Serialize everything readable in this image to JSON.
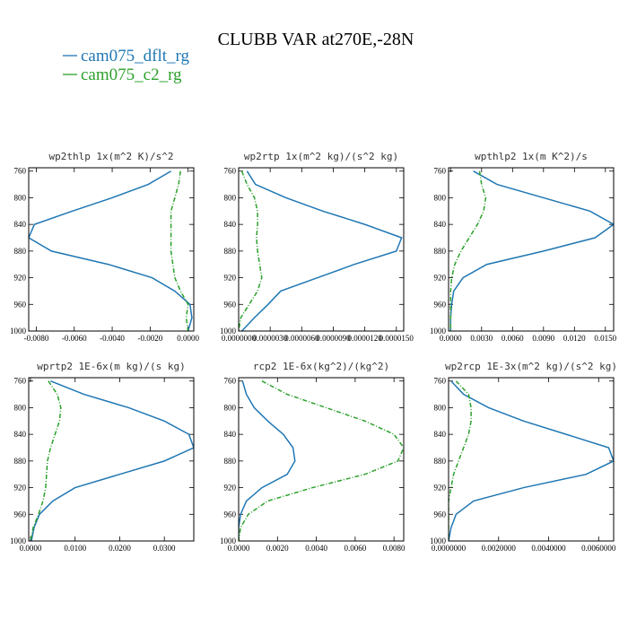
{
  "title": "CLUBB VAR at270E,-28N",
  "legend": [
    {
      "name": "cam075_dflt_rg",
      "color": "#1f77b4",
      "style": "solid"
    },
    {
      "name": "cam075_c2_rg",
      "color": "#2ca02c",
      "style": "dashed"
    }
  ],
  "chart_data": [
    {
      "type": "line",
      "title": "wp2thlp  1x(m^2 K)/s^2",
      "y": [
        760,
        780,
        800,
        820,
        840,
        860,
        880,
        900,
        920,
        940,
        960,
        980,
        1000
      ],
      "ylim": [
        1000,
        755
      ],
      "yticks": [
        760,
        800,
        840,
        880,
        920,
        960,
        1000
      ],
      "xlim": [
        -0.0084,
        0.0003
      ],
      "xticks": [
        {
          "value": -0.008,
          "label": "-0.0080"
        },
        {
          "value": -0.006,
          "label": "-0.0060"
        },
        {
          "value": -0.004,
          "label": "-0.0040"
        },
        {
          "value": -0.002,
          "label": "-0.0020"
        },
        {
          "value": 0,
          "label": "0.0000"
        }
      ],
      "series": [
        {
          "color": "#1f77b4",
          "style": "solid",
          "values": [
            -0.0009,
            -0.0021,
            -0.004,
            -0.0061,
            -0.0081,
            -0.0084,
            -0.0072,
            -0.0042,
            -0.0019,
            -0.0007,
            0.0001,
            0.0002,
            0.0
          ]
        },
        {
          "color": "#2ca02c",
          "style": "dashed",
          "values": [
            -0.0004,
            -0.0005,
            -0.0007,
            -0.0009,
            -0.0009,
            -0.0009,
            -0.0009,
            -0.0008,
            -0.0007,
            -0.0004,
            0.0,
            -0.0001,
            0.0
          ]
        }
      ]
    },
    {
      "type": "line",
      "title": "wp2rtp  1x(m^2 kg)/(s^2 kg)",
      "y": [
        760,
        780,
        800,
        820,
        840,
        860,
        880,
        900,
        920,
        940,
        960,
        980,
        1000
      ],
      "ylim": [
        1000,
        755
      ],
      "yticks": [
        760,
        800,
        840,
        880,
        920,
        960,
        1000
      ],
      "xlim": [
        0,
        1.57e-05
      ],
      "xticks": [
        {
          "value": 0,
          "label": "0.0000000"
        },
        {
          "value": 3e-06,
          "label": "0.0000030"
        },
        {
          "value": 6e-06,
          "label": "0.0000060"
        },
        {
          "value": 9e-06,
          "label": "0.0000090"
        },
        {
          "value": 1.2e-05,
          "label": "0.0000120"
        },
        {
          "value": 1.5e-05,
          "label": "0.0000150"
        }
      ],
      "series": [
        {
          "color": "#1f77b4",
          "style": "solid",
          "values": [
            8e-07,
            1.6e-06,
            4.5e-06,
            8e-06,
            1.2e-05,
            1.55e-05,
            1.5e-05,
            1.1e-05,
            7.5e-06,
            4e-06,
            2.8e-06,
            1.5e-06,
            3e-07
          ]
        },
        {
          "color": "#2ca02c",
          "style": "dashed",
          "values": [
            3e-07,
            8e-07,
            1.5e-06,
            1.8e-06,
            1.8e-06,
            1.7e-06,
            1.8e-06,
            2e-06,
            2.2e-06,
            1.8e-06,
            1e-06,
            2e-07,
            0
          ]
        }
      ]
    },
    {
      "type": "line",
      "title": "wpthlp2  1x(m K^2)/s",
      "y": [
        760,
        780,
        800,
        820,
        840,
        860,
        880,
        900,
        920,
        940,
        960,
        980,
        1000
      ],
      "ylim": [
        1000,
        755
      ],
      "yticks": [
        760,
        800,
        840,
        880,
        920,
        960,
        1000
      ],
      "xlim": [
        -0.0002,
        0.0158
      ],
      "xticks": [
        {
          "value": 0,
          "label": "0.0000"
        },
        {
          "value": 0.003,
          "label": "0.0030"
        },
        {
          "value": 0.006,
          "label": "0.0060"
        },
        {
          "value": 0.009,
          "label": "0.0090"
        },
        {
          "value": 0.012,
          "label": "0.0120"
        },
        {
          "value": 0.015,
          "label": "0.0150"
        }
      ],
      "series": [
        {
          "color": "#1f77b4",
          "style": "solid",
          "values": [
            0.0022,
            0.0045,
            0.009,
            0.0135,
            0.0158,
            0.014,
            0.009,
            0.0035,
            0.0012,
            0.0003,
            0.0001,
            0,
            0
          ]
        },
        {
          "color": "#2ca02c",
          "style": "dashed",
          "values": [
            0.0028,
            0.003,
            0.0034,
            0.0032,
            0.0026,
            0.0018,
            0.001,
            0.0004,
            0.0001,
            0,
            0,
            0,
            0
          ]
        }
      ]
    },
    {
      "type": "line",
      "title": "wprtp2  1E-6x(m kg)/(s kg)",
      "y": [
        760,
        780,
        800,
        820,
        840,
        860,
        880,
        900,
        920,
        940,
        960,
        980,
        1000
      ],
      "ylim": [
        1000,
        755
      ],
      "yticks": [
        760,
        800,
        840,
        880,
        920,
        960,
        1000
      ],
      "xlim": [
        -0.0004,
        0.0366
      ],
      "xticks": [
        {
          "value": 0,
          "label": "0.0000"
        },
        {
          "value": 0.01,
          "label": "0.0100"
        },
        {
          "value": 0.02,
          "label": "0.0200"
        },
        {
          "value": 0.03,
          "label": "0.0300"
        }
      ],
      "series": [
        {
          "color": "#1f77b4",
          "style": "solid",
          "values": [
            0.0045,
            0.012,
            0.022,
            0.03,
            0.0355,
            0.0366,
            0.03,
            0.02,
            0.01,
            0.005,
            0.002,
            0.0008,
            0.0002
          ]
        },
        {
          "color": "#2ca02c",
          "style": "dashed",
          "values": [
            0.004,
            0.006,
            0.0068,
            0.0065,
            0.0055,
            0.0045,
            0.0038,
            0.0036,
            0.0034,
            0.0028,
            0.0018,
            0.0006,
            0
          ]
        }
      ]
    },
    {
      "type": "line",
      "title": "rcp2  1E-6x(kg^2)/(kg^2)",
      "y": [
        760,
        780,
        800,
        820,
        840,
        860,
        880,
        900,
        920,
        940,
        960,
        980,
        1000
      ],
      "ylim": [
        1000,
        755
      ],
      "yticks": [
        760,
        800,
        840,
        880,
        920,
        960,
        1000
      ],
      "xlim": [
        0,
        0.0085
      ],
      "xticks": [
        {
          "value": 0,
          "label": "0.0000"
        },
        {
          "value": 0.002,
          "label": "0.0020"
        },
        {
          "value": 0.004,
          "label": "0.0040"
        },
        {
          "value": 0.006,
          "label": "0.0060"
        },
        {
          "value": 0.008,
          "label": "0.0080"
        }
      ],
      "series": [
        {
          "color": "#1f77b4",
          "style": "solid",
          "values": [
            0.0002,
            0.0004,
            0.0008,
            0.0015,
            0.0023,
            0.0028,
            0.0029,
            0.0025,
            0.0012,
            0.0004,
            0.0001,
            0,
            0
          ]
        },
        {
          "color": "#2ca02c",
          "style": "dashed",
          "values": [
            0.0012,
            0.0025,
            0.0045,
            0.0065,
            0.008,
            0.0085,
            0.0082,
            0.0065,
            0.0038,
            0.0015,
            0.0005,
            0.0001,
            0
          ]
        }
      ]
    },
    {
      "type": "line",
      "title": "wp2rcp  1E-3x(m^2 kg)/(s^2 kg)",
      "y": [
        760,
        780,
        800,
        820,
        840,
        860,
        880,
        900,
        920,
        940,
        960,
        980,
        1000
      ],
      "ylim": [
        1000,
        755
      ],
      "yticks": [
        760,
        800,
        840,
        880,
        920,
        960,
        1000
      ],
      "xlim": [
        0,
        0.0066
      ],
      "xticks": [
        {
          "value": 0,
          "label": "0.0000000"
        },
        {
          "value": 0.002,
          "label": "0.0020000"
        },
        {
          "value": 0.004,
          "label": "0.0040000"
        },
        {
          "value": 0.006,
          "label": "0.0060000"
        }
      ],
      "series": [
        {
          "color": "#1f77b4",
          "style": "solid",
          "values": [
            0.0001,
            0.0006,
            0.0016,
            0.003,
            0.0047,
            0.0064,
            0.0066,
            0.0055,
            0.003,
            0.001,
            0.0003,
            0.0001,
            0
          ]
        },
        {
          "color": "#2ca02c",
          "style": "dashed",
          "values": [
            0.0003,
            0.0008,
            0.0009,
            0.0009,
            0.0008,
            0.0006,
            0.0004,
            0.0002,
            0.0001,
            0,
            0,
            0,
            0
          ]
        }
      ]
    }
  ]
}
